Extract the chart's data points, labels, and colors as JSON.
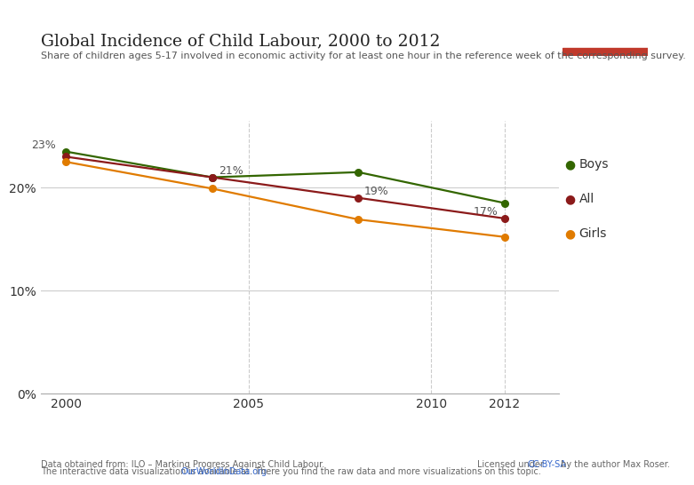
{
  "title": "Global Incidence of Child Labour, 2000 to 2012",
  "subtitle": "Share of children ages 5-17 involved in economic activity for at least one hour in the reference week of the corresponding survey.",
  "boys": {
    "years": [
      2000,
      2004,
      2008,
      2012
    ],
    "values": [
      0.235,
      0.21,
      0.215,
      0.185
    ],
    "color": "#336600",
    "label": "Boys"
  },
  "all": {
    "years": [
      2000,
      2004,
      2008,
      2012
    ],
    "values": [
      0.23,
      0.21,
      0.19,
      0.17
    ],
    "color": "#8b1a1a",
    "label": "All"
  },
  "girls": {
    "years": [
      2000,
      2004,
      2008,
      2012
    ],
    "values": [
      0.225,
      0.199,
      0.169,
      0.152
    ],
    "color": "#e07b00",
    "label": "Girls"
  },
  "xlim": [
    1999.3,
    2013.5
  ],
  "ylim": [
    0,
    0.265
  ],
  "yticks": [
    0,
    0.1,
    0.2
  ],
  "ytick_labels": [
    "0%",
    "10%",
    "20%"
  ],
  "xticks": [
    2000,
    2005,
    2010,
    2012
  ],
  "bg_color": "#ffffff",
  "grid_color": "#cccccc",
  "owid_box_bg": "#1a3050",
  "owid_box_line": "#c0392b"
}
